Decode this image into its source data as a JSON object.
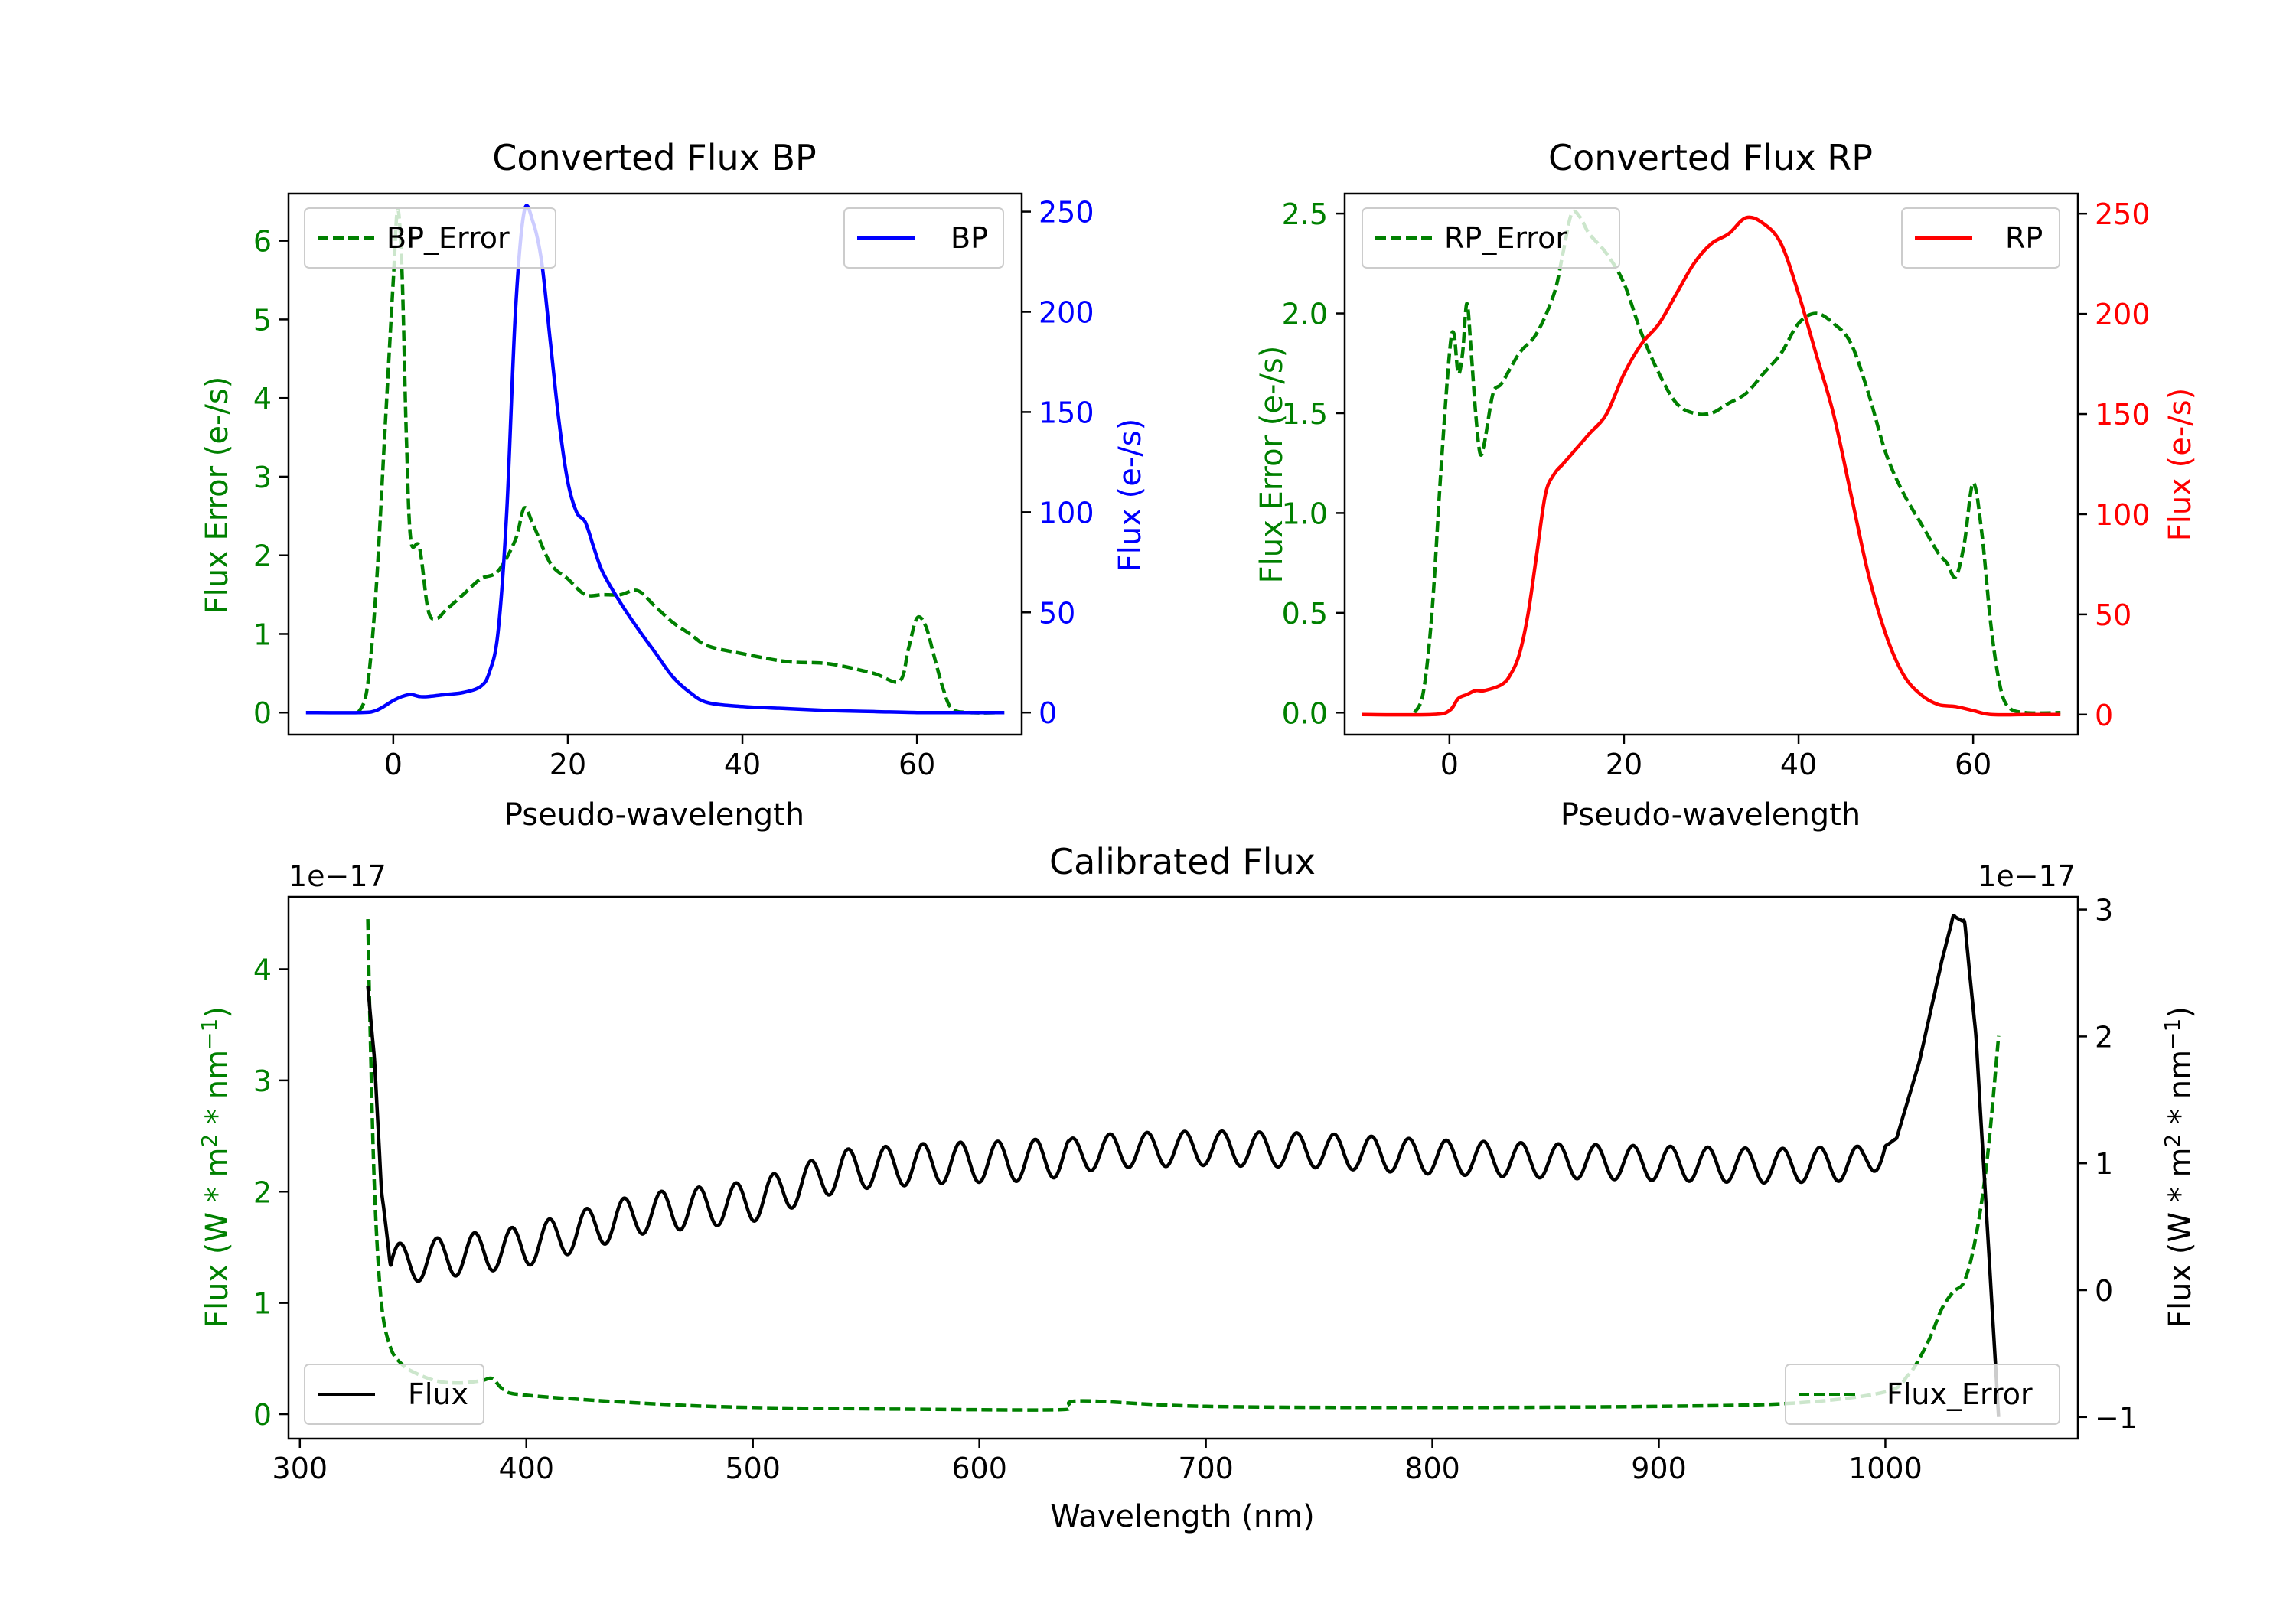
{
  "chart_data": [
    {
      "id": "bp",
      "type": "line",
      "title": "Converted Flux BP",
      "xlabel": "Pseudo-wavelength",
      "xlim": [
        -12,
        72
      ],
      "xticks": [
        0,
        20,
        40,
        60
      ],
      "left_axis": {
        "label": "Flux Error (e-/s)",
        "color": "#008000",
        "ylim": [
          -0.28,
          6.6
        ],
        "ticks": [
          0,
          1,
          2,
          3,
          4,
          5,
          6
        ],
        "tick_labels": [
          "0",
          "1",
          "2",
          "3",
          "4",
          "5",
          "6"
        ]
      },
      "right_axis": {
        "label": "Flux (e-/s)",
        "color": "#0000ff",
        "ylim": [
          -11,
          259
        ],
        "ticks": [
          0,
          50,
          100,
          150,
          200,
          250
        ],
        "tick_labels": [
          "0",
          "50",
          "100",
          "150",
          "200",
          "250"
        ]
      },
      "series": [
        {
          "name": "BP_Error",
          "axis": "left",
          "color": "#008000",
          "dashed": true,
          "x": [
            -4,
            -3,
            -2,
            -1,
            0,
            0.5,
            1,
            1.5,
            2,
            3,
            4,
            5,
            6,
            8,
            10,
            12,
            14,
            15,
            16,
            18,
            20,
            22,
            24,
            26,
            28,
            30,
            32,
            34,
            36,
            40,
            45,
            50,
            55,
            58,
            59,
            60,
            61,
            62,
            63,
            64,
            66,
            70
          ],
          "values": [
            0,
            0.3,
            1.5,
            3.5,
            5.5,
            6.4,
            5.6,
            3.5,
            2.2,
            2.1,
            1.3,
            1.2,
            1.3,
            1.5,
            1.7,
            1.8,
            2.2,
            2.6,
            2.4,
            1.9,
            1.7,
            1.5,
            1.5,
            1.5,
            1.55,
            1.35,
            1.15,
            1.0,
            0.85,
            0.75,
            0.65,
            0.62,
            0.5,
            0.4,
            0.8,
            1.2,
            1.1,
            0.7,
            0.3,
            0.05,
            0,
            0
          ]
        },
        {
          "name": "BP",
          "axis": "right",
          "color": "#0000ff",
          "dashed": false,
          "x": [
            -10,
            -4,
            -2,
            0,
            1,
            2,
            3,
            4,
            6,
            8,
            10,
            11,
            12,
            13,
            14,
            15,
            16,
            17,
            18,
            19,
            20,
            21,
            22,
            23,
            24,
            26,
            28,
            30,
            32,
            34,
            36,
            40,
            45,
            50,
            55,
            60,
            65,
            70
          ],
          "values": [
            0,
            0,
            1,
            6,
            8,
            9,
            8,
            8,
            9,
            10,
            13,
            20,
            40,
            100,
            200,
            250,
            245,
            225,
            185,
            145,
            115,
            100,
            95,
            82,
            70,
            55,
            42,
            30,
            18,
            10,
            5,
            3,
            2,
            1,
            0.5,
            0,
            0,
            0
          ]
        }
      ],
      "legends": [
        {
          "position": "upper-left",
          "label": "BP_Error"
        },
        {
          "position": "upper-right",
          "label": "BP"
        }
      ]
    },
    {
      "id": "rp",
      "type": "line",
      "title": "Converted Flux RP",
      "xlabel": "Pseudo-wavelength",
      "xlim": [
        -12,
        72
      ],
      "xticks": [
        0,
        20,
        40,
        60
      ],
      "left_axis": {
        "label": "Flux Error (e-/s)",
        "color": "#008000",
        "ylim": [
          -0.11,
          2.6
        ],
        "ticks": [
          0,
          0.5,
          1,
          1.5,
          2,
          2.5
        ],
        "tick_labels": [
          "0.0",
          "0.5",
          "1.0",
          "1.5",
          "2.0",
          "2.5"
        ]
      },
      "right_axis": {
        "label": "Flux (e-/s)",
        "color": "#ff0000",
        "ylim": [
          -10,
          260
        ],
        "ticks": [
          0,
          50,
          100,
          150,
          200,
          250
        ],
        "tick_labels": [
          "0",
          "50",
          "100",
          "150",
          "200",
          "250"
        ]
      },
      "series": [
        {
          "name": "RP_Error",
          "axis": "left",
          "color": "#008000",
          "dashed": true,
          "x": [
            -4,
            -3,
            -2,
            -1,
            0,
            0.5,
            1,
            1.5,
            2,
            2.5,
            3,
            3.5,
            4,
            5,
            6,
            8,
            10,
            12,
            13,
            14,
            15,
            16,
            18,
            20,
            22,
            24,
            26,
            28,
            30,
            32,
            34,
            36,
            38,
            40,
            42,
            44,
            46,
            48,
            50,
            52,
            54,
            56,
            57,
            58,
            59,
            60,
            61,
            62,
            63,
            64,
            66,
            70
          ],
          "values": [
            0,
            0.1,
            0.5,
            1.2,
            1.8,
            1.9,
            1.7,
            1.8,
            2.05,
            1.8,
            1.5,
            1.3,
            1.35,
            1.6,
            1.65,
            1.8,
            1.9,
            2.1,
            2.3,
            2.5,
            2.48,
            2.4,
            2.3,
            2.15,
            1.9,
            1.7,
            1.55,
            1.5,
            1.5,
            1.55,
            1.6,
            1.7,
            1.8,
            1.95,
            2.0,
            1.95,
            1.85,
            1.6,
            1.3,
            1.1,
            0.95,
            0.8,
            0.75,
            0.68,
            0.85,
            1.15,
            0.9,
            0.45,
            0.15,
            0.03,
            0,
            0
          ]
        },
        {
          "name": "RP",
          "axis": "right",
          "color": "#ff0000",
          "dashed": false,
          "x": [
            -10,
            -2,
            0,
            1,
            2,
            3,
            4,
            6,
            7,
            8,
            9,
            10,
            11,
            12,
            13,
            14,
            16,
            18,
            20,
            22,
            24,
            26,
            28,
            30,
            32,
            34,
            36,
            38,
            40,
            42,
            44,
            46,
            48,
            50,
            52,
            54,
            56,
            58,
            60,
            62,
            66,
            70
          ],
          "values": [
            0,
            0,
            2,
            8,
            10,
            12,
            12,
            15,
            20,
            30,
            50,
            80,
            110,
            120,
            125,
            130,
            140,
            150,
            170,
            185,
            195,
            210,
            225,
            235,
            240,
            248,
            245,
            235,
            210,
            180,
            150,
            110,
            70,
            40,
            20,
            10,
            5,
            4,
            2,
            0,
            0,
            0
          ]
        }
      ],
      "legends": [
        {
          "position": "upper-left",
          "label": "RP_Error"
        },
        {
          "position": "upper-right",
          "label": "RP"
        }
      ]
    },
    {
      "id": "cal",
      "type": "line",
      "title": "Calibrated Flux",
      "xlabel": "Wavelength (nm)",
      "xlim": [
        295,
        1085
      ],
      "xticks": [
        300,
        400,
        500,
        600,
        700,
        800,
        900,
        1000
      ],
      "left_axis": {
        "label": "Flux (W * m2 * nm-1)",
        "color": "#008000",
        "ylim": [
          -0.22,
          4.65
        ],
        "ticks": [
          0,
          1,
          2,
          3,
          4
        ],
        "tick_labels": [
          "0",
          "1",
          "2",
          "3",
          "4"
        ],
        "offset_text": "1e−17"
      },
      "right_axis": {
        "label": "Flux (W * m2 * nm-1)",
        "color": "#000000",
        "ylim": [
          -1.17,
          3.1
        ],
        "ticks": [
          -1,
          0,
          1,
          2,
          3
        ],
        "tick_labels": [
          "−1",
          "0",
          "1",
          "2",
          "3"
        ],
        "offset_text": "1e−17"
      },
      "series": [
        {
          "name": "Flux_Error",
          "axis": "left",
          "color": "#008000",
          "dashed": true,
          "x": [
            330,
            331,
            333,
            336,
            340,
            345,
            350,
            360,
            370,
            380,
            385,
            390,
            400,
            450,
            500,
            600,
            635,
            640,
            645,
            700,
            800,
            900,
            960,
            1000,
            1010,
            1015,
            1020,
            1025,
            1030,
            1035,
            1040,
            1045,
            1050
          ],
          "values": [
            4.45,
            3.5,
            2.0,
            1.0,
            0.6,
            0.45,
            0.38,
            0.3,
            0.28,
            0.3,
            0.32,
            0.22,
            0.17,
            0.1,
            0.06,
            0.04,
            0.04,
            0.06,
            0.12,
            0.07,
            0.06,
            0.07,
            0.1,
            0.2,
            0.35,
            0.5,
            0.7,
            0.95,
            1.1,
            1.2,
            1.6,
            2.3,
            3.4
          ]
        },
        {
          "name": "Flux",
          "axis": "right",
          "color": "#000000",
          "dashed": false
        }
      ],
      "flux_model": {
        "range": [
          330,
          1050
        ],
        "anchors_x": [
          330,
          333,
          336,
          340,
          360,
          400,
          450,
          500,
          540,
          580,
          620,
          660,
          700,
          750,
          800,
          850,
          900,
          950,
          990,
          1005,
          1015,
          1025,
          1030,
          1035,
          1040,
          1045,
          1050
        ],
        "anchors_y": [
          2.4,
          1.8,
          0.8,
          0.2,
          0.25,
          0.35,
          0.6,
          0.7,
          0.95,
          1.0,
          1.02,
          1.1,
          1.12,
          1.1,
          1.05,
          1.02,
          1.0,
          0.98,
          1.0,
          1.2,
          1.8,
          2.6,
          2.95,
          2.9,
          2.0,
          0.5,
          -1.0
        ],
        "wiggle_amplitude": 0.16,
        "wiggle_period_nm": 16.5
      },
      "legends": [
        {
          "position": "lower-left",
          "label": "Flux"
        },
        {
          "position": "lower-right",
          "label": "Flux_Error"
        }
      ]
    }
  ]
}
